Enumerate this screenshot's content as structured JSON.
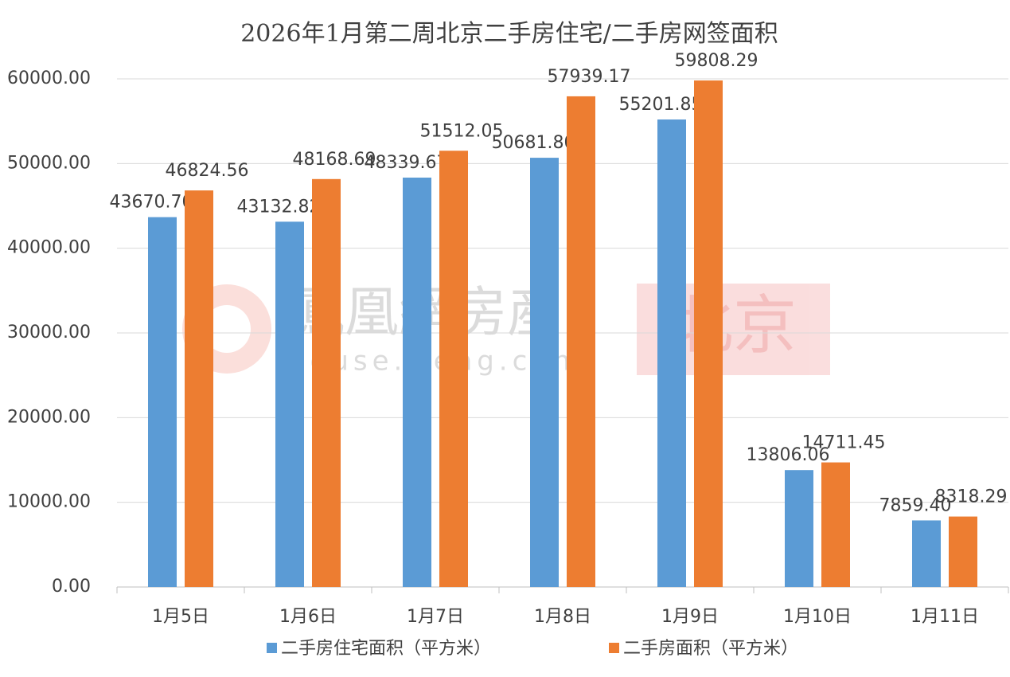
{
  "chart_data": {
    "type": "bar",
    "title": "2026年1月第二周北京二手房住宅/二手房网签面积",
    "categories": [
      "1月5日",
      "1月6日",
      "1月7日",
      "1月8日",
      "1月9日",
      "1月10日",
      "1月11日"
    ],
    "series": [
      {
        "name": "二手房住宅面积（平方米）",
        "color": "#5b9bd5",
        "values": [
          43670.7,
          43132.82,
          48339.67,
          50681.8,
          55201.85,
          13806.06,
          7859.4
        ],
        "value_labels": [
          "43670.70",
          "43132.82",
          "48339.67",
          "50681.80",
          "55201.85",
          "13806.06",
          "7859.40"
        ]
      },
      {
        "name": "二手房面积（平方米）",
        "color": "#ed7d31",
        "values": [
          46824.56,
          48168.69,
          51512.05,
          57939.17,
          59808.29,
          14711.45,
          8318.29
        ],
        "value_labels": [
          "46824.56",
          "48168.69",
          "51512.05",
          "57939.17",
          "59808.29",
          "14711.45",
          "8318.29"
        ]
      }
    ],
    "ylim": [
      0,
      60000
    ],
    "yticks": [
      {
        "value": 0,
        "label": "0.00"
      },
      {
        "value": 10000,
        "label": "10000.00"
      },
      {
        "value": 20000,
        "label": "20000.00"
      },
      {
        "value": 30000,
        "label": "30000.00"
      },
      {
        "value": 40000,
        "label": "40000.00"
      },
      {
        "value": 50000,
        "label": "50000.00"
      },
      {
        "value": 60000,
        "label": "60000.00"
      }
    ],
    "grid": true,
    "legend": "bottom",
    "watermark": {
      "brand": "鳳凰網房産",
      "url": "house.ifeng.com",
      "city": "北京"
    }
  }
}
